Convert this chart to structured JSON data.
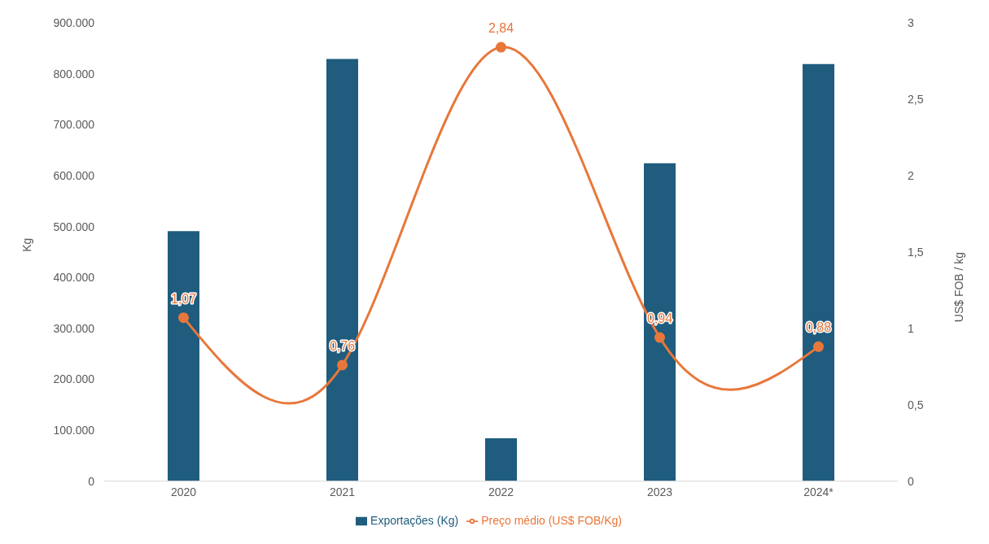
{
  "chart_data": {
    "type": "bar",
    "categories": [
      "2020",
      "2021",
      "2022",
      "2023",
      "2024*"
    ],
    "ylabel": "Kg",
    "y2label": "US$ FOB / kg",
    "series": [
      {
        "name": "Exportações (Kg)",
        "color": "#1f5c7e",
        "values": [
          491000,
          829000,
          84000,
          624000,
          819000
        ]
      },
      {
        "name": "Preço médio (US$ FOB/Kg)",
        "type": "line",
        "axis": "y2",
        "color": "#e8773a",
        "values": [
          1.07,
          0.76,
          2.84,
          0.94,
          0.88
        ],
        "value_labels": [
          "1,07",
          "0,76",
          "2,84",
          "0,94",
          "0,88"
        ]
      }
    ],
    "ylim": [
      0,
      900000
    ],
    "yticks": [
      0,
      {
        "value": 100000,
        "label": "100.000"
      },
      {
        "value": 200000,
        "label": "200.000"
      },
      {
        "value": 300000,
        "label": "300.000"
      },
      {
        "value": 400000,
        "label": "400.000"
      },
      {
        "value": 500000,
        "label": "500.000"
      },
      {
        "value": 600000,
        "label": "600.000"
      },
      {
        "value": 700000,
        "label": "700.000"
      },
      {
        "value": 800000,
        "label": "800.000"
      },
      {
        "value": 900000,
        "label": "900.000"
      }
    ],
    "y2lim": [
      0,
      3
    ],
    "y2ticks": [
      0,
      {
        "value": 0.5,
        "label": "0,5"
      },
      1,
      {
        "value": 1.5,
        "label": "1,5"
      },
      2,
      {
        "value": 2.5,
        "label": "2,5"
      },
      3
    ],
    "marker": "circle",
    "legend": "bottom",
    "grid": false
  }
}
